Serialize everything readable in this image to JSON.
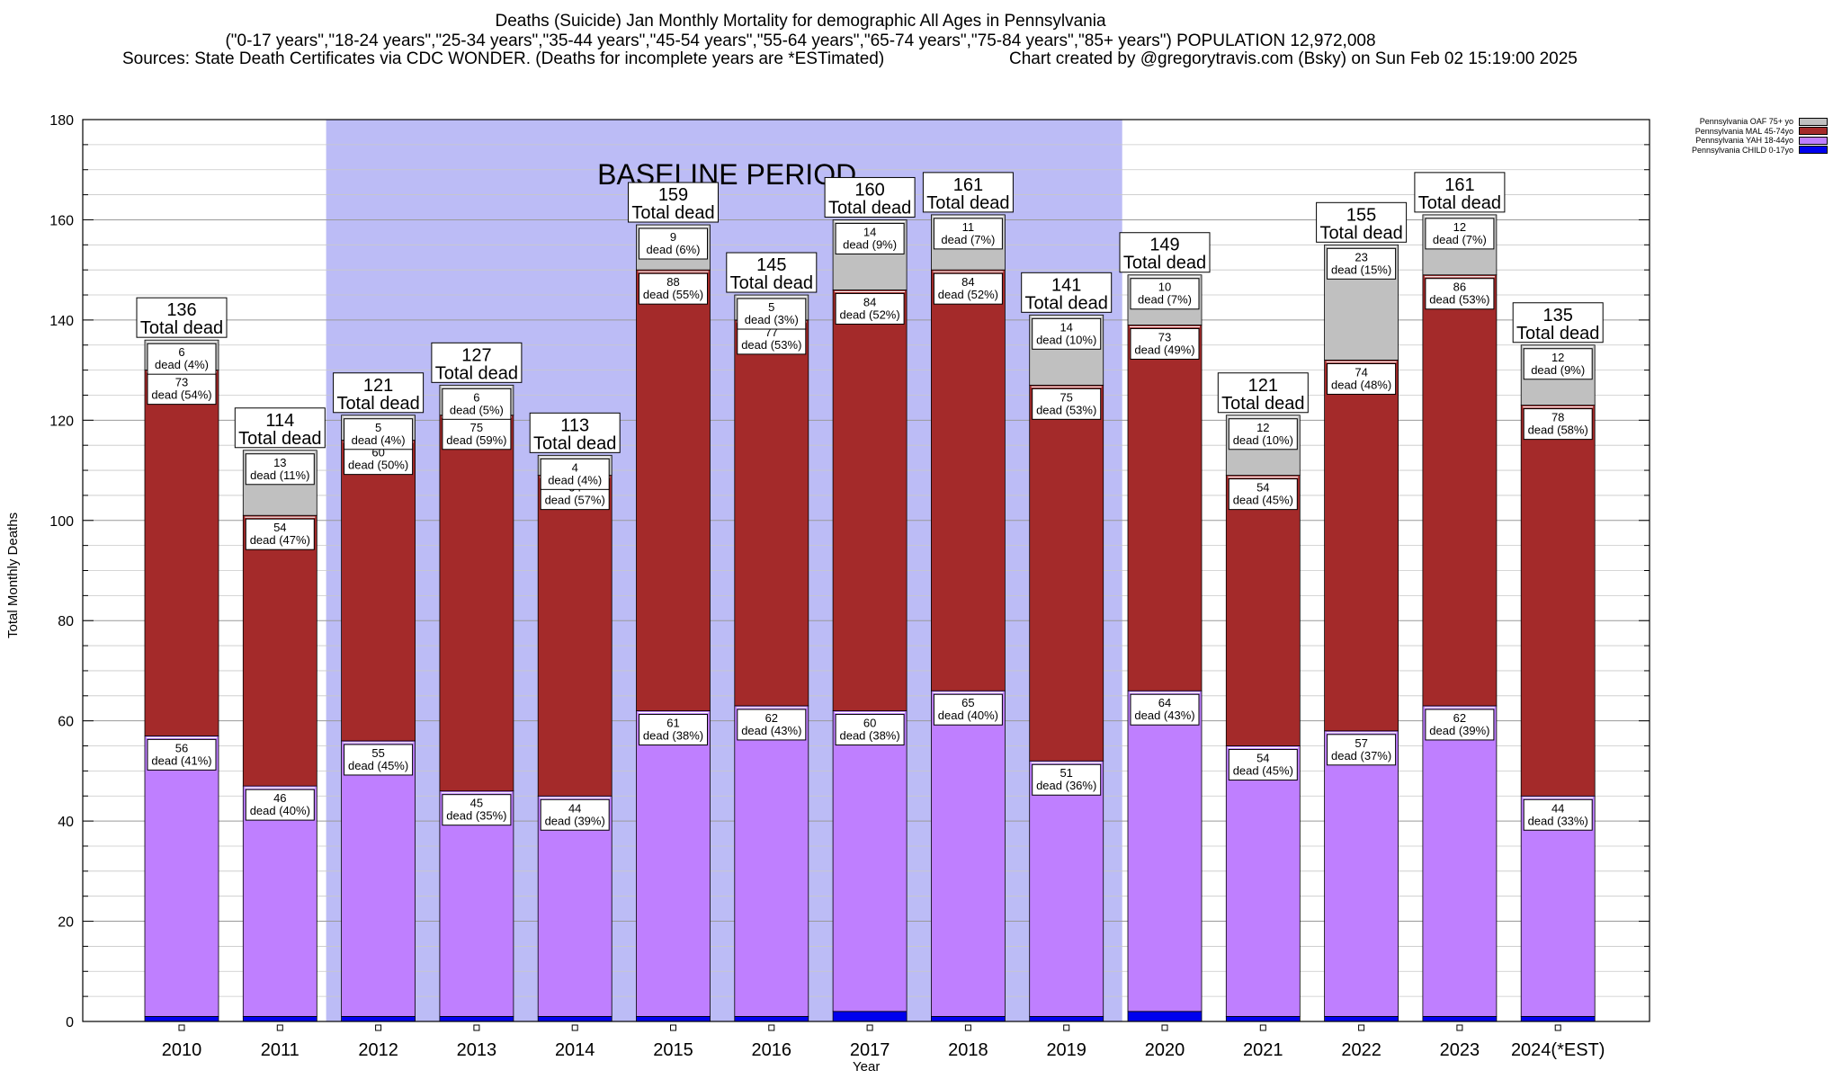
{
  "header": {
    "title": "Deaths (Suicide) Jan Monthly Mortality for demographic All Ages in Pennsylvania",
    "subtitle": "(\"0-17 years\",\"18-24 years\",\"25-34 years\",\"35-44 years\",\"45-54 years\",\"55-64 years\",\"65-74 years\",\"75-84 years\",\"85+ years\") POPULATION 12,972,008",
    "sources": "Sources: State Death Certificates via CDC WONDER. (Deaths for incomplete years are *ESTimated)",
    "credit": "Chart created by @gregorytravis.com (Bsky) on Sun Feb 02 15:19:00 2025"
  },
  "chart_data": {
    "type": "bar",
    "stacked": true,
    "ylabel": "Total Monthly Deaths",
    "xlabel": "Year",
    "ylim": [
      0,
      180
    ],
    "yticks": [
      0,
      20,
      40,
      60,
      80,
      100,
      120,
      140,
      160,
      180
    ],
    "grid": true,
    "legend_position": "top-right outside",
    "baseline_label": "BASELINE PERIOD",
    "baseline_range": [
      "2012",
      "2019"
    ],
    "baseline_color": "#bcbcf6",
    "total_suffix": "Total dead",
    "categories": [
      "2010",
      "2011",
      "2012",
      "2013",
      "2014",
      "2015",
      "2016",
      "2017",
      "2018",
      "2019",
      "2020",
      "2021",
      "2022",
      "2023",
      "2024(*EST)"
    ],
    "totals": [
      136,
      114,
      121,
      127,
      113,
      159,
      145,
      160,
      161,
      141,
      149,
      121,
      155,
      161,
      135
    ],
    "series": [
      {
        "name": "Pennsylvania CHILD 0-17yo",
        "color": "#0000ee",
        "values": [
          1,
          1,
          1,
          1,
          1,
          1,
          1,
          2,
          1,
          1,
          2,
          1,
          1,
          1,
          1
        ],
        "labels": []
      },
      {
        "name": "Pennsylvania YAH 18-44yo",
        "color": "#bf7fff",
        "values": [
          56,
          46,
          55,
          45,
          44,
          61,
          62,
          60,
          65,
          51,
          64,
          54,
          57,
          62,
          44
        ],
        "labels": [
          "dead (41%)",
          "dead (40%)",
          "dead (45%)",
          "dead (35%)",
          "dead (39%)",
          "dead (38%)",
          "dead (43%)",
          "dead (38%)",
          "dead (40%)",
          "dead (36%)",
          "dead (43%)",
          "dead (45%)",
          "dead (37%)",
          "dead (39%)",
          "dead (33%)"
        ]
      },
      {
        "name": "Pennsylvania MAL 45-74yo",
        "color": "#a42a2a",
        "values": [
          73,
          54,
          60,
          75,
          64,
          88,
          77,
          84,
          84,
          75,
          73,
          54,
          74,
          86,
          78
        ],
        "labels": [
          "dead (54%)",
          "dead (47%)",
          "dead (50%)",
          "dead (59%)",
          "dead (57%)",
          "dead (55%)",
          "dead (53%)",
          "dead (52%)",
          "dead (52%)",
          "dead (53%)",
          "dead (49%)",
          "dead (45%)",
          "dead (48%)",
          "dead (53%)",
          "dead (58%)"
        ]
      },
      {
        "name": "Pennsylvania OAF 75+ yo",
        "color": "#c0c0c0",
        "values": [
          6,
          13,
          5,
          6,
          4,
          9,
          5,
          14,
          11,
          14,
          10,
          12,
          23,
          12,
          12
        ],
        "labels": [
          "dead (4%)",
          "dead (11%)",
          "dead (4%)",
          "dead (5%)",
          "dead (4%)",
          "dead (6%)",
          "dead (3%)",
          "dead (9%)",
          "dead (7%)",
          "dead (10%)",
          "dead (7%)",
          "dead (10%)",
          "dead (15%)",
          "dead (7%)",
          "dead (9%)"
        ]
      }
    ]
  }
}
